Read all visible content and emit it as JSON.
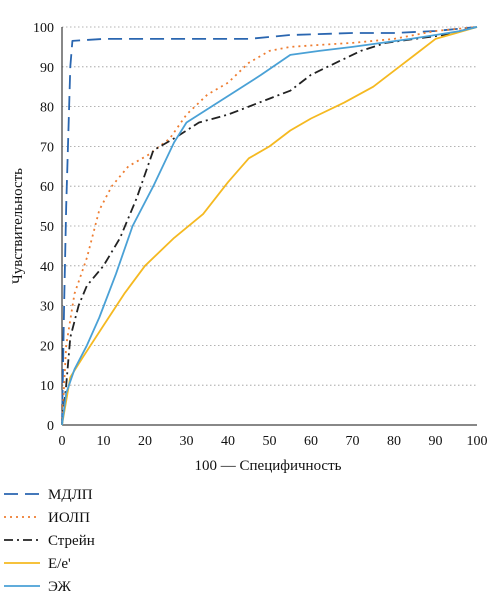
{
  "chart_data": {
    "type": "line",
    "xlabel": "100 — Специфичность",
    "ylabel": "Чувствительность",
    "xlim": [
      0,
      100
    ],
    "ylim": [
      0,
      100
    ],
    "x_ticks": [
      "0",
      "10",
      "20",
      "30",
      "40",
      "50",
      "60",
      "70",
      "80",
      "90",
      "100"
    ],
    "y_ticks": [
      "0",
      "10",
      "20",
      "30",
      "40",
      "50",
      "60",
      "70",
      "80",
      "90",
      "100"
    ],
    "grid": "horizontal dotted",
    "legend_position": "bottom-left",
    "series": [
      {
        "name": "МДЛП",
        "style": "long-dash",
        "color": "#2a66b0",
        "x": [
          0,
          0.5,
          1,
          1.5,
          2,
          2.5,
          10,
          30,
          45,
          55,
          70,
          80,
          90,
          100
        ],
        "y": [
          0,
          30,
          55,
          72,
          90,
          96.5,
          97,
          97,
          97,
          98,
          98.5,
          98.5,
          99,
          100
        ]
      },
      {
        "name": "ИОЛП",
        "style": "dotted",
        "color": "#ee7d31",
        "x": [
          0,
          1,
          3,
          6,
          9,
          12,
          16,
          21,
          26,
          30,
          35,
          40,
          45,
          50,
          55,
          62,
          70,
          80,
          90,
          100
        ],
        "y": [
          0,
          20,
          33,
          42,
          54,
          60,
          65,
          68,
          72,
          78,
          83,
          86,
          91,
          94,
          95,
          95.5,
          96,
          97,
          99,
          100
        ]
      },
      {
        "name": "Стрейн",
        "style": "dash-dot",
        "color": "#222222",
        "x": [
          0,
          1,
          2,
          4,
          6,
          10,
          14,
          18,
          22,
          27,
          33,
          40,
          45,
          50,
          55,
          60,
          66,
          72,
          78,
          85,
          92,
          100
        ],
        "y": [
          0,
          10,
          22,
          30,
          35,
          40,
          47,
          57,
          69,
          72,
          76,
          78,
          80,
          82,
          84,
          88,
          91,
          94,
          96,
          97,
          98,
          100
        ]
      },
      {
        "name": "Е/е'",
        "style": "solid",
        "color": "#f5b921",
        "x": [
          0,
          2,
          5,
          10,
          15,
          20,
          27,
          34,
          40,
          45,
          50,
          55,
          60,
          68,
          75,
          80,
          85,
          90,
          95,
          100
        ],
        "y": [
          0,
          12,
          17,
          25,
          33,
          40,
          47,
          53,
          61,
          67,
          70,
          74,
          77,
          81,
          85,
          89,
          93,
          97,
          98.5,
          100
        ]
      },
      {
        "name": "ЭЖ",
        "style": "solid",
        "color": "#4aa1d6",
        "x": [
          0,
          1,
          3,
          6,
          9,
          13,
          17,
          22,
          27,
          30,
          36,
          42,
          48,
          55,
          62,
          70,
          77,
          84,
          90,
          96,
          100
        ],
        "y": [
          0,
          8,
          14,
          20,
          27,
          38,
          50,
          60,
          71,
          76,
          80,
          84,
          88,
          93,
          94,
          95,
          96,
          97,
          98,
          99,
          100
        ]
      }
    ]
  }
}
